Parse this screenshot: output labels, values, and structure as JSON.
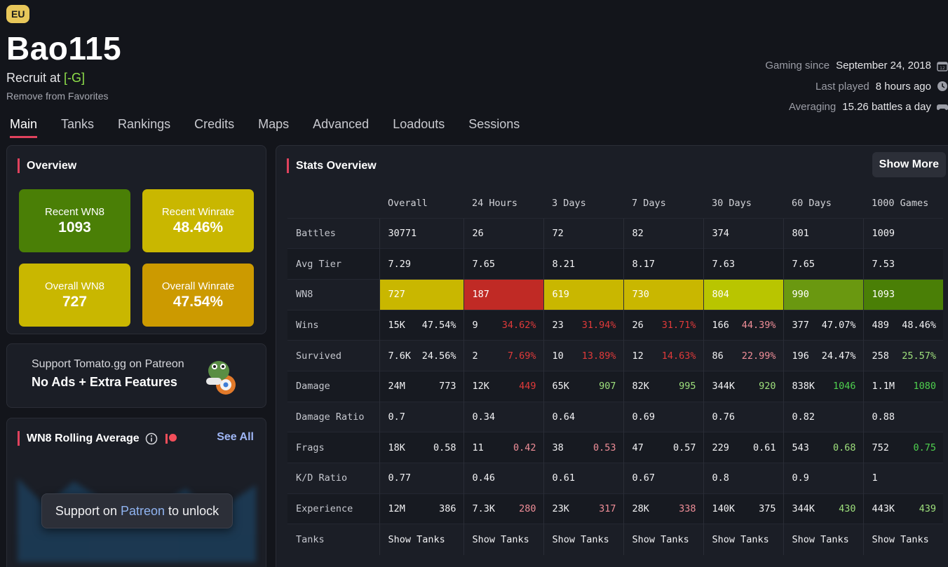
{
  "player": {
    "region": "EU",
    "name": "Bao115",
    "rank_prefix": "Recruit at",
    "clan": "[-G]",
    "favorites_action": "Remove from Favorites",
    "gaming_since_label": "Gaming since",
    "gaming_since_value": "September 24, 2018",
    "last_played_label": "Last played",
    "last_played_value": "8 hours ago",
    "averaging_label": "Averaging",
    "averaging_value": "15.26 battles a day"
  },
  "tabs": [
    "Main",
    "Tanks",
    "Rankings",
    "Credits",
    "Maps",
    "Advanced",
    "Loadouts",
    "Sessions"
  ],
  "active_tab": "Main",
  "overview": {
    "title": "Overview",
    "tiles": [
      {
        "label": "Recent WN8",
        "value": "1093",
        "color": "#4a7f06"
      },
      {
        "label": "Recent Winrate",
        "value": "48.46%",
        "color": "#c9b700"
      },
      {
        "label": "Overall WN8",
        "value": "727",
        "color": "#c9b700"
      },
      {
        "label": "Overall Winrate",
        "value": "47.54%",
        "color": "#cc9a00"
      }
    ]
  },
  "patreon_card": {
    "line1": "Support Tomato.gg on Patreon",
    "line2": "No Ads + Extra Features"
  },
  "rolling": {
    "title": "WN8 Rolling Average",
    "see_all": "See All",
    "unlock_prefix": "Support on",
    "unlock_link": "Patreon",
    "unlock_suffix": "to unlock"
  },
  "stats": {
    "title": "Stats Overview",
    "show_more": "Show More",
    "columns": [
      "Overall",
      "24 Hours",
      "3 Days",
      "7 Days",
      "30 Days",
      "60 Days",
      "1000 Games"
    ],
    "battles": {
      "label": "Battles",
      "values": [
        "30771",
        "26",
        "72",
        "82",
        "374",
        "801",
        "1009"
      ]
    },
    "avg_tier": {
      "label": "Avg Tier",
      "values": [
        "7.29",
        "7.65",
        "8.21",
        "8.17",
        "7.63",
        "7.65",
        "7.53"
      ]
    },
    "wn8": {
      "label": "WN8",
      "values": [
        "727",
        "187",
        "619",
        "730",
        "804",
        "990",
        "1093"
      ],
      "colors": [
        "#c9b700",
        "#c02a25",
        "#c9b700",
        "#c9b700",
        "#b9c500",
        "#6a9810",
        "#4a7f06"
      ]
    },
    "wins": {
      "label": "Wins",
      "values": [
        "15K",
        "9",
        "23",
        "26",
        "166",
        "377",
        "489"
      ],
      "pct": [
        "47.54%",
        "34.62%",
        "31.94%",
        "31.71%",
        "44.39%",
        "47.07%",
        "48.46%"
      ]
    },
    "survived": {
      "label": "Survived",
      "values": [
        "7.6K",
        "2",
        "10",
        "12",
        "86",
        "196",
        "258"
      ],
      "pct": [
        "24.56%",
        "7.69%",
        "13.89%",
        "14.63%",
        "22.99%",
        "24.47%",
        "25.57%"
      ]
    },
    "damage": {
      "label": "Damage",
      "values": [
        "24M",
        "12K",
        "65K",
        "82K",
        "344K",
        "838K",
        "1.1M"
      ],
      "avg": [
        "773",
        "449",
        "907",
        "995",
        "920",
        "1046",
        "1080"
      ]
    },
    "damage_ratio": {
      "label": "Damage Ratio",
      "values": [
        "0.7",
        "0.34",
        "0.64",
        "0.69",
        "0.76",
        "0.82",
        "0.88"
      ]
    },
    "frags": {
      "label": "Frags",
      "values": [
        "18K",
        "11",
        "38",
        "47",
        "229",
        "543",
        "752"
      ],
      "avg": [
        "0.58",
        "0.42",
        "0.53",
        "0.57",
        "0.61",
        "0.68",
        "0.75"
      ]
    },
    "kd_ratio": {
      "label": "K/D Ratio",
      "values": [
        "0.77",
        "0.46",
        "0.61",
        "0.67",
        "0.8",
        "0.9",
        "1"
      ]
    },
    "experience": {
      "label": "Experience",
      "values": [
        "12M",
        "7.3K",
        "23K",
        "28K",
        "140K",
        "344K",
        "443K"
      ],
      "avg": [
        "386",
        "280",
        "317",
        "338",
        "375",
        "430",
        "439"
      ]
    },
    "tanks": {
      "label": "Tanks",
      "link": "Show Tanks"
    }
  },
  "colors": {
    "accent": "#e0425d",
    "link": "#9fb6f5",
    "bad": "#e03a3a",
    "good": "#4fd14f"
  }
}
